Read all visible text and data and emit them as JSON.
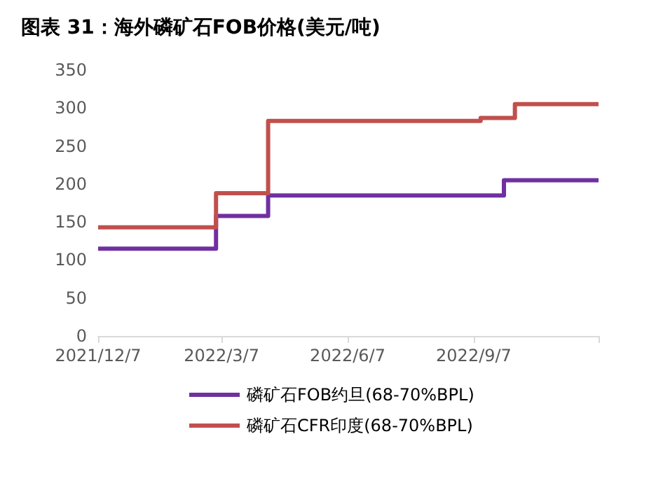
{
  "chart_data": {
    "type": "step",
    "title": "图表 31：海外磷矿石FOB价格(美元/吨)",
    "xlim": [
      "2021-12-07",
      "2022-12-07"
    ],
    "xticks": [
      {
        "value": "2021-12-07",
        "label": "2021/12/7"
      },
      {
        "value": "2022-03-07",
        "label": "2022/3/7"
      },
      {
        "value": "2022-06-07",
        "label": "2022/6/7"
      },
      {
        "value": "2022-09-07",
        "label": "2022/9/7"
      },
      {
        "value": "2022-12-07",
        "label": null
      }
    ],
    "ylim": [
      0,
      350
    ],
    "yticks": [
      0,
      50,
      100,
      150,
      200,
      250,
      300,
      350
    ],
    "series": [
      {
        "name": "磷矿石FOB约旦(68-70%BPL)",
        "color": "#7030a0",
        "x": [
          "2021-12-07",
          "2022-03-03",
          "2022-04-10",
          "2022-09-29",
          "2022-12-07"
        ],
        "values": [
          115,
          158,
          185,
          205,
          205
        ]
      },
      {
        "name": "磷矿石CFR印度(68-70%BPL)",
        "color": "#c0504d",
        "x": [
          "2021-12-07",
          "2022-03-03",
          "2022-04-10",
          "2022-09-12",
          "2022-10-07",
          "2022-12-07"
        ],
        "values": [
          143,
          188,
          283,
          287,
          305,
          305
        ]
      }
    ],
    "grid": false,
    "legend": "bottom",
    "marker": "none",
    "line_style": "solid"
  }
}
